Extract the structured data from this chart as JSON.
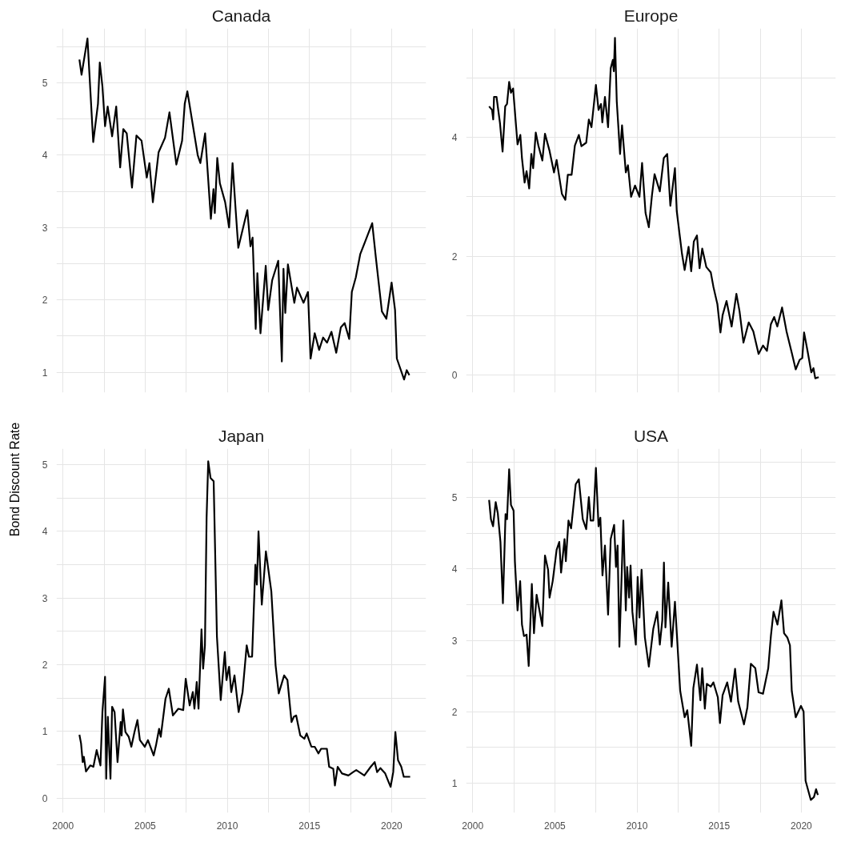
{
  "chart_data": [
    {
      "type": "line",
      "title": "Canada",
      "tick_labels": "y",
      "grid": true,
      "line_style": "solid",
      "xlim": [
        1999.6,
        2022.1
      ],
      "ylim": [
        0.72,
        5.75
      ],
      "xticks": [
        2000,
        {
          "value": 2002.5,
          "label": null
        },
        2005,
        {
          "value": 2007.5,
          "label": null
        },
        2010,
        {
          "value": 2012.5,
          "label": null
        },
        2015,
        {
          "value": 2017.5,
          "label": null
        },
        2020
      ],
      "yticks": [
        1,
        {
          "value": 1.5,
          "label": null
        },
        2,
        {
          "value": 2.5,
          "label": null
        },
        3,
        {
          "value": 3.5,
          "label": null
        },
        4,
        {
          "value": 4.5,
          "label": null
        },
        5,
        {
          "value": 5.5,
          "label": null
        }
      ],
      "series": [
        {
          "color": "#000000",
          "x": [
            2001.0,
            2001.13,
            2001.49,
            2001.84,
            2002.13,
            2002.24,
            2002.4,
            2002.56,
            2002.72,
            2002.99,
            2003.24,
            2003.48,
            2003.67,
            2003.88,
            2004.2,
            2004.47,
            2004.78,
            2005.1,
            2005.26,
            2005.47,
            2005.82,
            2006.21,
            2006.48,
            2006.9,
            2007.25,
            2007.41,
            2007.57,
            2008.2,
            2008.36,
            2008.65,
            2009.0,
            2009.16,
            2009.24,
            2009.39,
            2009.55,
            2009.87,
            2010.11,
            2010.32,
            2010.51,
            2010.67,
            2011.22,
            2011.41,
            2011.54,
            2011.73,
            2011.83,
            2012.02,
            2012.34,
            2012.49,
            2012.73,
            2013.1,
            2013.32,
            2013.42,
            2013.53,
            2013.69,
            2014.08,
            2014.24,
            2014.64,
            2014.91,
            2015.07,
            2015.32,
            2015.59,
            2015.83,
            2016.07,
            2016.34,
            2016.63,
            2016.91,
            2017.14,
            2017.42,
            2017.58,
            2017.82,
            2018.09,
            2018.38,
            2018.82,
            2019.04,
            2019.41,
            2019.68,
            2020.0,
            2020.21,
            2020.32,
            2020.76,
            2020.92,
            2021.08
          ],
          "values": [
            5.32,
            5.11,
            5.61,
            4.18,
            4.71,
            5.28,
            4.95,
            4.4,
            4.67,
            4.26,
            4.67,
            3.83,
            4.36,
            4.3,
            3.55,
            4.27,
            4.2,
            3.69,
            3.89,
            3.35,
            4.04,
            4.24,
            4.59,
            3.87,
            4.2,
            4.71,
            4.88,
            4.0,
            3.89,
            4.3,
            3.12,
            3.53,
            3.2,
            3.96,
            3.61,
            3.35,
            3.0,
            3.89,
            3.24,
            2.72,
            3.24,
            2.74,
            2.86,
            1.6,
            2.37,
            1.54,
            2.47,
            1.86,
            2.27,
            2.54,
            1.15,
            2.43,
            1.82,
            2.49,
            1.96,
            2.17,
            1.96,
            2.11,
            1.19,
            1.54,
            1.31,
            1.48,
            1.41,
            1.56,
            1.27,
            1.62,
            1.68,
            1.46,
            2.11,
            2.31,
            2.63,
            2.8,
            3.06,
            2.59,
            1.84,
            1.74,
            2.24,
            1.86,
            1.19,
            0.9,
            1.03,
            0.96
          ]
        }
      ]
    },
    {
      "type": "line",
      "title": "Europe",
      "tick_labels": "y",
      "grid": true,
      "line_style": "solid",
      "xlim": [
        1999.6,
        2022.1
      ],
      "ylim": [
        -0.29,
        5.83
      ],
      "xticks": [
        2000,
        {
          "value": 2002.5,
          "label": null
        },
        2005,
        {
          "value": 2007.5,
          "label": null
        },
        2010,
        {
          "value": 2012.5,
          "label": null
        },
        2015,
        {
          "value": 2017.5,
          "label": null
        },
        2020
      ],
      "yticks": [
        0,
        {
          "value": 1,
          "label": null
        },
        2,
        {
          "value": 3,
          "label": null
        },
        4,
        {
          "value": 5,
          "label": null
        }
      ],
      "series": [
        {
          "color": "#000000",
          "x": [
            2001.0,
            2001.18,
            2001.25,
            2001.3,
            2001.45,
            2001.66,
            2001.82,
            2001.98,
            2002.09,
            2002.22,
            2002.33,
            2002.46,
            2002.73,
            2002.9,
            2003.0,
            2003.16,
            2003.28,
            2003.44,
            2003.57,
            2003.68,
            2003.84,
            2004.0,
            2004.24,
            2004.4,
            2004.68,
            2004.95,
            2005.11,
            2005.43,
            2005.64,
            2005.79,
            2006.02,
            2006.22,
            2006.46,
            2006.62,
            2006.91,
            2007.07,
            2007.23,
            2007.5,
            2007.66,
            2007.81,
            2007.89,
            2008.05,
            2008.24,
            2008.4,
            2008.53,
            2008.59,
            2008.66,
            2008.77,
            2008.97,
            2009.09,
            2009.32,
            2009.45,
            2009.64,
            2009.88,
            2010.15,
            2010.31,
            2010.52,
            2010.72,
            2010.91,
            2011.07,
            2011.39,
            2011.63,
            2011.84,
            2012.03,
            2012.31,
            2012.42,
            2012.74,
            2012.9,
            2013.14,
            2013.3,
            2013.46,
            2013.65,
            2013.81,
            2013.97,
            2014.22,
            2014.49,
            2014.65,
            2014.89,
            2015.08,
            2015.21,
            2015.45,
            2015.76,
            2016.05,
            2016.24,
            2016.48,
            2016.8,
            2017.08,
            2017.4,
            2017.67,
            2017.91,
            2018.15,
            2018.35,
            2018.54,
            2018.83,
            2019.1,
            2019.42,
            2019.66,
            2019.9,
            2020.06,
            2020.17,
            2020.38,
            2020.61,
            2020.74,
            2020.85,
            2021.06
          ],
          "values": [
            4.52,
            4.46,
            4.3,
            4.68,
            4.68,
            4.24,
            3.76,
            4.52,
            4.56,
            4.93,
            4.75,
            4.82,
            3.88,
            4.04,
            3.65,
            3.24,
            3.43,
            3.14,
            3.72,
            3.48,
            4.08,
            3.86,
            3.61,
            4.06,
            3.77,
            3.41,
            3.62,
            3.05,
            2.95,
            3.37,
            3.37,
            3.86,
            4.04,
            3.85,
            3.91,
            4.3,
            4.17,
            4.88,
            4.46,
            4.56,
            4.25,
            4.68,
            4.17,
            5.16,
            5.3,
            5.11,
            5.67,
            4.6,
            3.72,
            4.2,
            3.41,
            3.53,
            3.0,
            3.19,
            3.0,
            3.57,
            2.73,
            2.49,
            3.02,
            3.38,
            3.09,
            3.65,
            3.72,
            2.85,
            3.48,
            2.76,
            2.04,
            1.77,
            2.16,
            1.75,
            2.25,
            2.35,
            1.8,
            2.13,
            1.82,
            1.73,
            1.49,
            1.2,
            0.72,
            1.01,
            1.25,
            0.82,
            1.37,
            1.08,
            0.55,
            0.89,
            0.74,
            0.36,
            0.5,
            0.41,
            0.86,
            0.98,
            0.82,
            1.14,
            0.74,
            0.38,
            0.1,
            0.26,
            0.29,
            0.72,
            0.41,
            0.05,
            0.12,
            -0.05,
            -0.03
          ]
        }
      ]
    },
    {
      "type": "line",
      "title": "Japan",
      "ylabel": "Bond Discount Rate",
      "grid": true,
      "line_style": "solid",
      "xlim": [
        1999.6,
        2022.1
      ],
      "ylim": [
        -0.22,
        5.24
      ],
      "xticks": [
        2000,
        {
          "value": 2002.5,
          "label": null
        },
        2005,
        {
          "value": 2007.5,
          "label": null
        },
        2010,
        {
          "value": 2012.5,
          "label": null
        },
        2015,
        {
          "value": 2017.5,
          "label": null
        },
        2020
      ],
      "yticks": [
        0,
        {
          "value": 0.5,
          "label": null
        },
        1,
        {
          "value": 1.5,
          "label": null
        },
        2,
        {
          "value": 2.5,
          "label": null
        },
        3,
        {
          "value": 3.5,
          "label": null
        },
        4,
        {
          "value": 4.5,
          "label": null
        },
        5
      ],
      "series": [
        {
          "color": "#000000",
          "x": [
            2001.0,
            2001.1,
            2001.2,
            2001.27,
            2001.4,
            2001.66,
            2001.85,
            2002.05,
            2002.28,
            2002.4,
            2002.56,
            2002.63,
            2002.73,
            2002.89,
            2002.99,
            2003.14,
            2003.32,
            2003.51,
            2003.57,
            2003.65,
            2003.8,
            2004.0,
            2004.16,
            2004.35,
            2004.53,
            2004.68,
            2004.98,
            2005.17,
            2005.52,
            2005.66,
            2005.85,
            2005.95,
            2006.24,
            2006.44,
            2006.69,
            2007.02,
            2007.32,
            2007.47,
            2007.71,
            2007.9,
            2008.0,
            2008.14,
            2008.25,
            2008.43,
            2008.53,
            2008.64,
            2008.74,
            2008.84,
            2008.98,
            2009.17,
            2009.37,
            2009.6,
            2009.72,
            2009.85,
            2009.95,
            2010.11,
            2010.24,
            2010.44,
            2010.69,
            2010.93,
            2011.18,
            2011.32,
            2011.51,
            2011.71,
            2011.8,
            2011.9,
            2012.1,
            2012.35,
            2012.68,
            2012.94,
            2013.13,
            2013.46,
            2013.66,
            2013.91,
            2014.05,
            2014.19,
            2014.44,
            2014.69,
            2014.83,
            2015.12,
            2015.32,
            2015.55,
            2015.71,
            2016.06,
            2016.2,
            2016.45,
            2016.55,
            2016.72,
            2016.98,
            2017.37,
            2017.66,
            2017.85,
            2018.34,
            2018.73,
            2018.97,
            2019.12,
            2019.32,
            2019.61,
            2019.77,
            2019.94,
            2020.1,
            2020.23,
            2020.39,
            2020.59,
            2020.74,
            2021.13
          ],
          "values": [
            0.95,
            0.82,
            0.54,
            0.62,
            0.4,
            0.49,
            0.47,
            0.72,
            0.49,
            1.29,
            1.82,
            0.29,
            1.22,
            0.29,
            1.37,
            1.29,
            0.54,
            1.14,
            0.94,
            1.33,
            0.99,
            0.92,
            0.77,
            0.99,
            1.17,
            0.87,
            0.77,
            0.87,
            0.64,
            0.79,
            1.04,
            0.92,
            1.49,
            1.64,
            1.24,
            1.34,
            1.32,
            1.79,
            1.39,
            1.59,
            1.34,
            1.74,
            1.34,
            2.53,
            1.94,
            2.29,
            4.2,
            5.05,
            4.8,
            4.75,
            2.42,
            1.47,
            1.82,
            2.19,
            1.77,
            1.97,
            1.59,
            1.84,
            1.29,
            1.59,
            2.29,
            2.12,
            2.12,
            3.5,
            3.2,
            4.0,
            2.9,
            3.7,
            3.1,
            1.99,
            1.57,
            1.84,
            1.77,
            1.14,
            1.22,
            1.24,
            0.94,
            0.89,
            0.97,
            0.77,
            0.77,
            0.67,
            0.74,
            0.74,
            0.47,
            0.44,
            0.19,
            0.47,
            0.37,
            0.34,
            0.39,
            0.42,
            0.34,
            0.47,
            0.54,
            0.39,
            0.45,
            0.37,
            0.27,
            0.17,
            0.39,
            0.99,
            0.57,
            0.47,
            0.32,
            0.32
          ]
        }
      ]
    },
    {
      "type": "line",
      "title": "USA",
      "grid": true,
      "line_style": "solid",
      "xlim": [
        1999.6,
        2022.1
      ],
      "ylim": [
        0.58,
        5.69
      ],
      "xticks": [
        2000,
        {
          "value": 2002.5,
          "label": null
        },
        2005,
        {
          "value": 2007.5,
          "label": null
        },
        2010,
        {
          "value": 2012.5,
          "label": null
        },
        2015,
        {
          "value": 2017.5,
          "label": null
        },
        2020
      ],
      "yticks": [
        1,
        {
          "value": 1.5,
          "label": null
        },
        2,
        {
          "value": 2.5,
          "label": null
        },
        3,
        {
          "value": 3.5,
          "label": null
        },
        4,
        {
          "value": 4.5,
          "label": null
        },
        5,
        {
          "value": 5.5,
          "label": null
        }
      ],
      "series": [
        {
          "color": "#000000",
          "x": [
            2001.0,
            2001.11,
            2001.24,
            2001.4,
            2001.53,
            2001.69,
            2001.84,
            2002.0,
            2002.09,
            2002.22,
            2002.33,
            2002.49,
            2002.57,
            2002.73,
            2002.89,
            2003.0,
            2003.12,
            2003.28,
            2003.41,
            2003.6,
            2003.73,
            2003.89,
            2004.24,
            2004.4,
            2004.59,
            2004.68,
            2004.87,
            2005.11,
            2005.27,
            2005.38,
            2005.59,
            2005.67,
            2005.83,
            2005.99,
            2006.27,
            2006.46,
            2006.7,
            2006.91,
            2007.07,
            2007.18,
            2007.34,
            2007.5,
            2007.66,
            2007.77,
            2007.9,
            2008.05,
            2008.24,
            2008.4,
            2008.61,
            2008.72,
            2008.82,
            2008.93,
            2009.17,
            2009.32,
            2009.4,
            2009.52,
            2009.61,
            2009.72,
            2009.93,
            2010.04,
            2010.15,
            2010.28,
            2010.48,
            2010.72,
            2010.99,
            2011.23,
            2011.39,
            2011.54,
            2011.64,
            2011.73,
            2011.9,
            2012.11,
            2012.31,
            2012.63,
            2012.9,
            2013.06,
            2013.3,
            2013.43,
            2013.65,
            2013.86,
            2013.97,
            2014.13,
            2014.25,
            2014.49,
            2014.65,
            2014.92,
            2015.05,
            2015.21,
            2015.49,
            2015.72,
            2015.97,
            2016.16,
            2016.51,
            2016.72,
            2016.93,
            2017.2,
            2017.4,
            2017.67,
            2017.99,
            2018.15,
            2018.31,
            2018.55,
            2018.79,
            2018.95,
            2019.15,
            2019.31,
            2019.42,
            2019.66,
            2019.98,
            2020.14,
            2020.26,
            2020.58,
            2020.77,
            2020.9,
            2021.01
          ],
          "values": [
            4.97,
            4.7,
            4.6,
            4.94,
            4.78,
            4.38,
            3.52,
            4.77,
            4.7,
            5.4,
            4.9,
            4.82,
            4.11,
            3.42,
            3.83,
            3.22,
            3.06,
            3.08,
            2.64,
            3.79,
            3.1,
            3.64,
            3.2,
            4.19,
            3.99,
            3.6,
            3.83,
            4.27,
            4.38,
            3.95,
            4.42,
            4.11,
            4.68,
            4.57,
            5.19,
            5.26,
            4.7,
            4.56,
            5.01,
            4.68,
            4.68,
            5.42,
            4.6,
            4.72,
            3.91,
            4.33,
            3.36,
            4.42,
            4.62,
            4.03,
            4.33,
            2.91,
            4.68,
            3.42,
            4.03,
            3.6,
            4.05,
            3.4,
            2.94,
            3.89,
            3.32,
            3.99,
            3.04,
            2.63,
            3.16,
            3.4,
            2.94,
            3.28,
            4.09,
            3.18,
            3.81,
            2.91,
            3.54,
            2.29,
            1.92,
            2.02,
            1.52,
            2.33,
            2.66,
            2.16,
            2.61,
            2.04,
            2.39,
            2.35,
            2.41,
            2.2,
            1.84,
            2.23,
            2.41,
            2.14,
            2.6,
            2.14,
            1.82,
            2.06,
            2.67,
            2.61,
            2.27,
            2.25,
            2.61,
            3.06,
            3.4,
            3.22,
            3.56,
            3.1,
            3.04,
            2.93,
            2.29,
            1.92,
            2.08,
            2.0,
            1.03,
            0.76,
            0.8,
            0.91,
            0.83
          ]
        }
      ]
    }
  ]
}
